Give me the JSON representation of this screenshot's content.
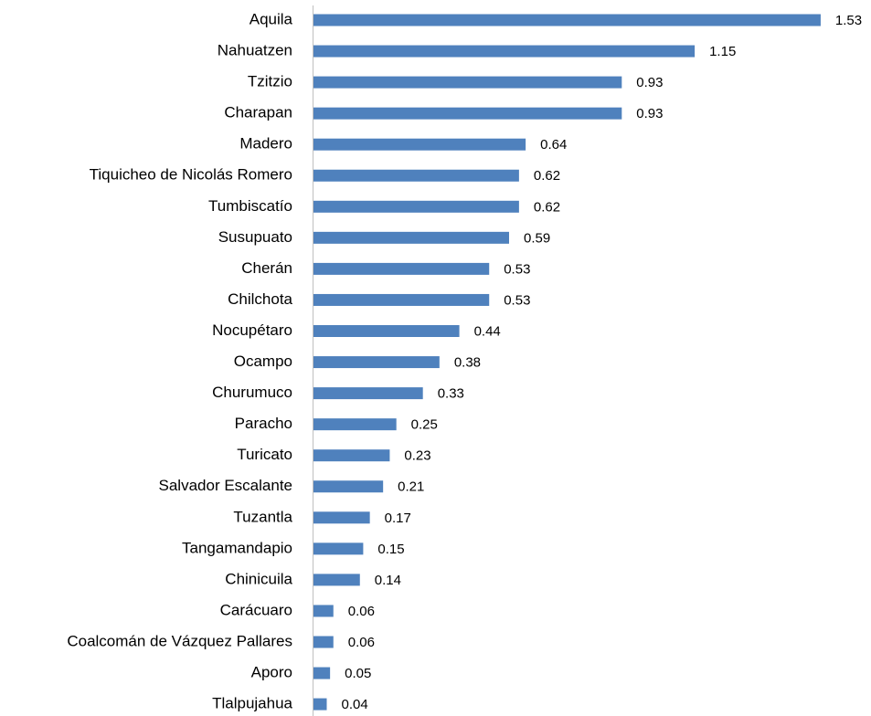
{
  "chart_data": {
    "type": "bar",
    "orientation": "horizontal",
    "color": "#4f81bd",
    "categories": [
      "Aquila",
      "Nahuatzen",
      "Tzitzio",
      "Charapan",
      "Madero",
      "Tiquicheo de Nicolás Romero",
      "Tumbiscatío",
      "Susupuato",
      "Cherán",
      "Chilchota",
      "Nocupétaro",
      "Ocampo",
      "Churumuco",
      "Paracho",
      "Turicato",
      "Salvador Escalante",
      "Tuzantla",
      "Tangamandapio",
      "Chinicuila",
      "Carácuaro",
      "Coalcomán de Vázquez Pallares",
      "Aporo",
      "Tlalpujahua"
    ],
    "values": [
      1.53,
      1.15,
      0.93,
      0.93,
      0.64,
      0.62,
      0.62,
      0.59,
      0.53,
      0.53,
      0.44,
      0.38,
      0.33,
      0.25,
      0.23,
      0.21,
      0.17,
      0.15,
      0.14,
      0.06,
      0.06,
      0.05,
      0.04
    ]
  }
}
